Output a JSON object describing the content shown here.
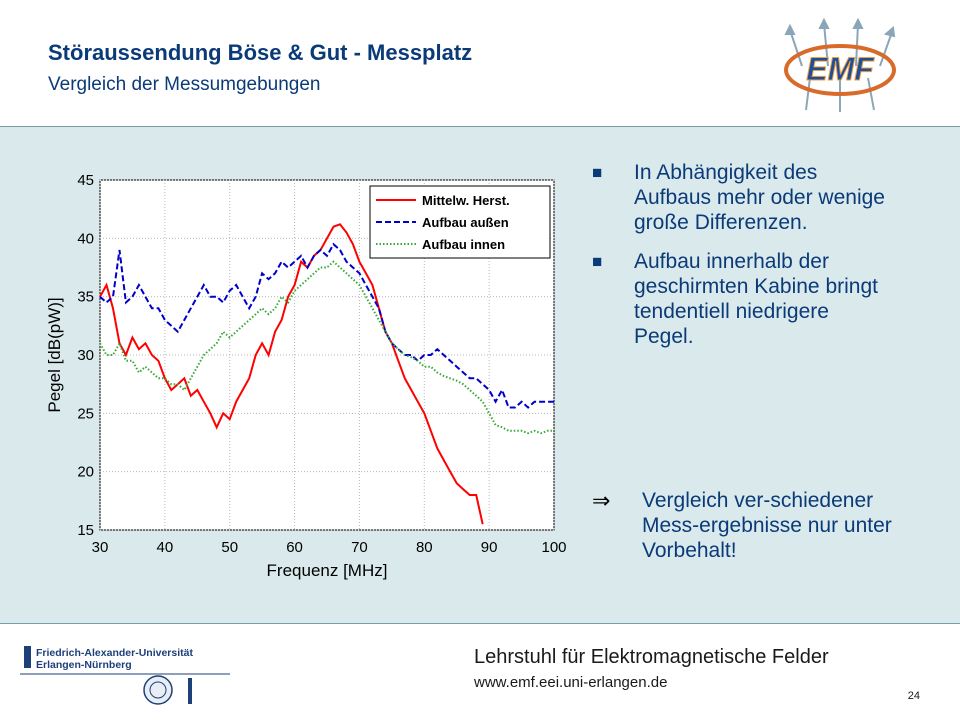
{
  "header": {
    "title": "Störaussendung Böse & Gut - Messplatz",
    "subtitle": "Vergleich der Messumgebungen",
    "logo_text": "EMF"
  },
  "bullets": [
    {
      "marker": "■",
      "text": "In Abhängigkeit des Aufbaus mehr oder wenige große Differenzen."
    },
    {
      "marker": "■",
      "text": "Aufbau innerhalb der geschirmten Kabine bringt tendentiell niedrigere Pegel."
    }
  ],
  "conclusion": {
    "marker": "⇒",
    "text": "Vergleich ver-schiedener Mess-ergebnisse nur unter Vorbehalt!"
  },
  "footer": {
    "university_line1": "Friedrich-Alexander-Universität",
    "university_line2": "Erlangen-Nürnberg",
    "chair": "Lehrstuhl für Elektromagnetische Felder",
    "url": "www.emf.eei.uni-erlangen.de",
    "page_number": "24"
  },
  "colors": {
    "title": "#0b3a78",
    "panel_bg": "#daeaec",
    "series_red": "#ff0000",
    "series_blue": "#0000cc",
    "series_green": "#33aa33"
  },
  "chart_data": {
    "type": "line",
    "xlabel": "Frequenz [MHz]",
    "ylabel": "Pegel [dB(pW)]",
    "xlim": [
      30,
      100
    ],
    "ylim": [
      15,
      45
    ],
    "xticks": [
      30,
      40,
      50,
      60,
      70,
      80,
      90,
      100
    ],
    "yticks": [
      15,
      20,
      25,
      30,
      35,
      40,
      45
    ],
    "grid": true,
    "legend_position": "top-right",
    "series": [
      {
        "name": "Mittelw. Herst.",
        "color": "#ff0000",
        "style": "solid",
        "x": [
          30,
          31,
          32,
          33,
          34,
          35,
          36,
          37,
          38,
          39,
          40,
          41,
          42,
          43,
          44,
          45,
          46,
          47,
          48,
          49,
          50,
          51,
          52,
          53,
          54,
          55,
          56,
          57,
          58,
          59,
          60,
          61,
          62,
          63,
          64,
          65,
          66,
          67,
          68,
          69,
          70,
          71,
          72,
          73,
          74,
          75,
          76,
          77,
          78,
          79,
          80,
          81,
          82,
          83,
          84,
          85,
          86,
          87,
          88,
          89
        ],
        "y": [
          35,
          36,
          34,
          31,
          30,
          31.5,
          30.5,
          31,
          30,
          29.5,
          28,
          27,
          27.5,
          28,
          26.5,
          27,
          26,
          25,
          23.8,
          25,
          24.5,
          26,
          27,
          28,
          30,
          31,
          30,
          32,
          33,
          35,
          36,
          38,
          37.5,
          38.5,
          39,
          40,
          41,
          41.2,
          40.5,
          39.5,
          38,
          37,
          36,
          34,
          32,
          31,
          29.5,
          28,
          27,
          26,
          25,
          23.5,
          22,
          21,
          20,
          19,
          18.5,
          18,
          18,
          15.5
        ]
      },
      {
        "name": "Aufbau außen",
        "color": "#0000cc",
        "style": "dashed",
        "x": [
          30,
          31,
          32,
          33,
          34,
          35,
          36,
          37,
          38,
          39,
          40,
          41,
          42,
          43,
          44,
          45,
          46,
          47,
          48,
          49,
          50,
          51,
          52,
          53,
          54,
          55,
          56,
          57,
          58,
          59,
          60,
          61,
          62,
          63,
          64,
          65,
          66,
          67,
          68,
          69,
          70,
          71,
          72,
          73,
          74,
          75,
          76,
          77,
          78,
          79,
          80,
          81,
          82,
          83,
          84,
          85,
          86,
          87,
          88,
          89,
          90,
          91,
          92,
          93,
          94,
          95,
          96,
          97,
          98,
          99,
          100
        ],
        "y": [
          35,
          34.5,
          35,
          39,
          34.5,
          35,
          36,
          35,
          34,
          34,
          33,
          32.5,
          32,
          33,
          34,
          35,
          36,
          35,
          35,
          34.5,
          35.5,
          36,
          35,
          34,
          35,
          37,
          36.5,
          37,
          38,
          37.5,
          38,
          38.5,
          37.5,
          38.5,
          39,
          38.5,
          39.5,
          39,
          38,
          37.5,
          37,
          36,
          35,
          34,
          32,
          31,
          30.5,
          30,
          30,
          29.5,
          30,
          30,
          30.5,
          30,
          29.5,
          29,
          28.5,
          28,
          28,
          27.5,
          27,
          26,
          27,
          25.5,
          25.5,
          26,
          25.5,
          26,
          26,
          26,
          26
        ]
      },
      {
        "name": "Aufbau innen",
        "color": "#33aa33",
        "style": "dotted",
        "x": [
          30,
          31,
          32,
          33,
          34,
          35,
          36,
          37,
          38,
          39,
          40,
          41,
          42,
          43,
          44,
          45,
          46,
          47,
          48,
          49,
          50,
          51,
          52,
          53,
          54,
          55,
          56,
          57,
          58,
          59,
          60,
          61,
          62,
          63,
          64,
          65,
          66,
          67,
          68,
          69,
          70,
          71,
          72,
          73,
          74,
          75,
          76,
          77,
          78,
          79,
          80,
          81,
          82,
          83,
          84,
          85,
          86,
          87,
          88,
          89,
          90,
          91,
          92,
          93,
          94,
          95,
          96,
          97,
          98,
          99,
          100
        ],
        "y": [
          31,
          30,
          30,
          31,
          29.5,
          29.5,
          28.5,
          29,
          28.5,
          28,
          28,
          27.5,
          27.5,
          27,
          28,
          29,
          30,
          30.5,
          31,
          32,
          31.5,
          32,
          32.5,
          33,
          33.5,
          34,
          33.5,
          34,
          35,
          34.5,
          35.5,
          36,
          36.5,
          37,
          37.5,
          37.5,
          38,
          37.5,
          37,
          36.5,
          36,
          35,
          34,
          33,
          32,
          31,
          30.5,
          30,
          29.8,
          29.5,
          29,
          29,
          28.5,
          28.2,
          28,
          27.8,
          27.5,
          27,
          26.5,
          26,
          25,
          24,
          23.8,
          23.5,
          23.5,
          23.5,
          23.3,
          23.5,
          23.3,
          23.5,
          23.5
        ]
      }
    ]
  }
}
